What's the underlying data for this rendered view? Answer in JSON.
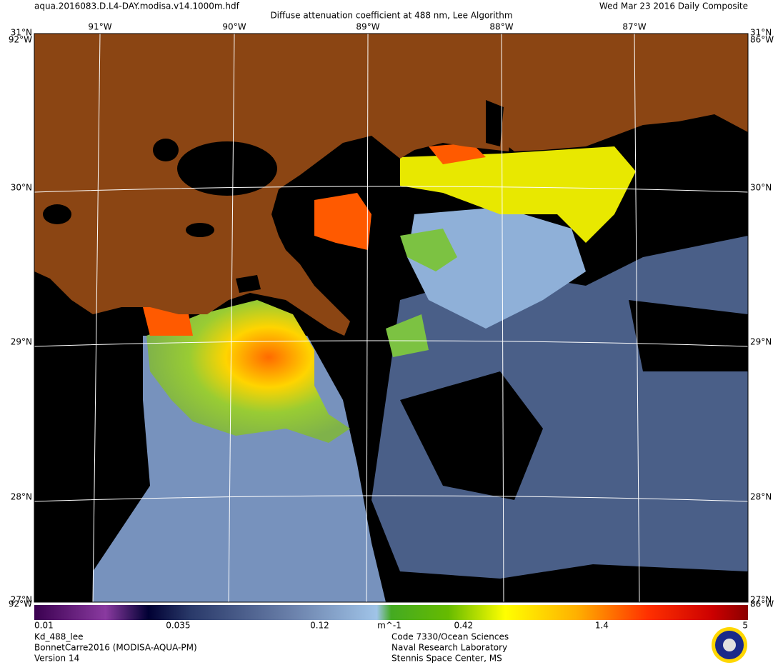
{
  "header": {
    "file": "aqua.2016083.D.L4-DAY.modisa.v14.1000m.hdf",
    "title": "Diffuse attenuation coefficient at 488 nm, Lee Algorithm",
    "date": "Wed Mar 23 2016 Daily Composite"
  },
  "map": {
    "lon_labels": [
      "91°W",
      "90°W",
      "89°W",
      "88°W",
      "87°W"
    ],
    "lat_labels": [
      "30°N",
      "29°N",
      "28°N"
    ],
    "corner_labels": {
      "top_lat": "31°N",
      "bottom_lat": "27°N",
      "west_lon": "92°W",
      "east_lon": "86°W"
    }
  },
  "colorbar": {
    "ticks": [
      0.01,
      0.035,
      0.12,
      0.42,
      1.4,
      5
    ],
    "unit": "m^-1",
    "scale": "log"
  },
  "footer": {
    "left": [
      "Kd_488_lee",
      "BonnetCarre2016 (MODISA-AQUA-PM)",
      "Version 14"
    ],
    "center": [
      "Code 7330/Ocean Sciences",
      "Naval Research Laboratory",
      "Stennis Space Center, MS"
    ]
  }
}
